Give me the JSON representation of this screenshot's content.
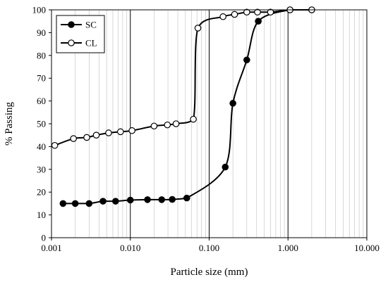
{
  "chart_data": {
    "type": "line",
    "x_scale": "log",
    "xlabel": "Particle size (mm)",
    "ylabel": "% Passing",
    "xlim": [
      0.001,
      10
    ],
    "ylim": [
      0,
      100
    ],
    "x_tick_labels": [
      "0.001",
      "0.010",
      "0.100",
      "1.000",
      "10.000"
    ],
    "y_ticks": [
      0,
      10,
      20,
      30,
      40,
      50,
      60,
      70,
      80,
      90,
      100
    ],
    "legend_position": "top-left",
    "grid": "vertical major and minor lines on log x-axis",
    "series": [
      {
        "name": "SC",
        "marker": "filled-circle",
        "x": [
          0.0014,
          0.002,
          0.003,
          0.0045,
          0.0065,
          0.01,
          0.0165,
          0.025,
          0.034,
          0.052,
          0.16,
          0.2,
          0.3,
          0.42,
          1.06,
          2.0
        ],
        "y": [
          15,
          15,
          15,
          16,
          16,
          16.5,
          16.7,
          16.7,
          16.8,
          17.4,
          31,
          59,
          78,
          95,
          100,
          100
        ]
      },
      {
        "name": "CL",
        "marker": "open-circle",
        "x": [
          0.0011,
          0.0019,
          0.0028,
          0.0037,
          0.0053,
          0.0075,
          0.0105,
          0.02,
          0.0295,
          0.038,
          0.063,
          0.072,
          0.15,
          0.21,
          0.3,
          0.41,
          0.6,
          1.06,
          2.0
        ],
        "y": [
          40.5,
          43.5,
          44,
          45,
          46,
          46.5,
          47,
          49,
          49.5,
          50,
          52,
          92,
          97,
          98,
          99,
          99,
          99,
          100,
          100
        ]
      }
    ]
  }
}
